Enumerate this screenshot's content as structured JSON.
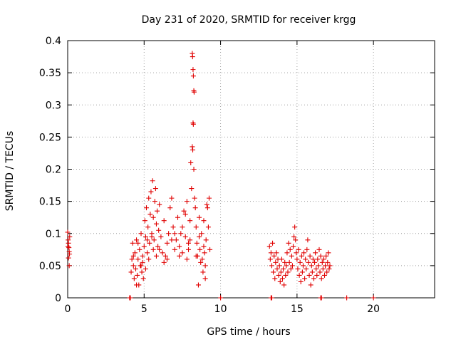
{
  "chart_data": {
    "type": "scatter",
    "title": "Day 231 of 2020, SRMTID for receiver krgg",
    "xlabel": "GPS time / hours",
    "ylabel": "SRMTID / TECUs",
    "xlim": [
      0,
      24
    ],
    "ylim": [
      0,
      0.4
    ],
    "x_ticks": [
      0,
      5,
      10,
      15,
      20
    ],
    "x_tick_labels": [
      "0",
      "5",
      "10",
      "15",
      "20"
    ],
    "y_ticks": [
      0,
      0.05,
      0.1,
      0.15,
      0.2,
      0.25,
      0.3,
      0.35,
      0.4
    ],
    "y_tick_labels": [
      "0",
      "0.05",
      "0.1",
      "0.15",
      "0.2",
      "0.25",
      "0.3",
      "0.35",
      "0.4"
    ],
    "grid": true,
    "marker": "+",
    "color": "#e00000",
    "series": [
      {
        "name": "SRMTID",
        "points": [
          [
            0.0,
            0.102
          ],
          [
            0.03,
            0.09
          ],
          [
            0.05,
            0.085
          ],
          [
            0.08,
            0.078
          ],
          [
            0.1,
            0.072
          ],
          [
            0.12,
            0.068
          ],
          [
            0.05,
            0.062
          ],
          [
            0.1,
            0.05
          ],
          [
            0.02,
            0.08
          ],
          [
            0.13,
            0.095
          ],
          [
            4.05,
            0.0
          ],
          [
            4.1,
            0.0
          ],
          [
            4.15,
            0.04
          ],
          [
            4.2,
            0.06
          ],
          [
            4.25,
            0.085
          ],
          [
            4.3,
            0.05
          ],
          [
            4.35,
            0.03
          ],
          [
            4.4,
            0.07
          ],
          [
            4.45,
            0.045
          ],
          [
            4.5,
            0.09
          ],
          [
            4.55,
            0.035
          ],
          [
            4.6,
            0.06
          ],
          [
            4.65,
            0.02
          ],
          [
            4.7,
            0.075
          ],
          [
            4.75,
            0.05
          ],
          [
            4.8,
            0.1
          ],
          [
            4.85,
            0.04
          ],
          [
            4.9,
            0.065
          ],
          [
            4.95,
            0.03
          ],
          [
            5.0,
            0.08
          ],
          [
            5.05,
            0.12
          ],
          [
            5.1,
            0.095
          ],
          [
            5.15,
            0.14
          ],
          [
            5.2,
            0.07
          ],
          [
            5.25,
            0.11
          ],
          [
            5.3,
            0.155
          ],
          [
            5.35,
            0.085
          ],
          [
            5.4,
            0.13
          ],
          [
            5.45,
            0.165
          ],
          [
            5.5,
            0.1
          ],
          [
            5.55,
            0.182
          ],
          [
            5.6,
            0.125
          ],
          [
            5.65,
            0.09
          ],
          [
            5.7,
            0.15
          ],
          [
            5.75,
            0.17
          ],
          [
            5.8,
            0.115
          ],
          [
            5.85,
            0.135
          ],
          [
            5.9,
            0.08
          ],
          [
            5.95,
            0.105
          ],
          [
            6.0,
            0.145
          ],
          [
            4.5,
            0.02
          ],
          [
            4.8,
            0.05
          ],
          [
            5.1,
            0.045
          ],
          [
            4.3,
            0.065
          ],
          [
            4.6,
            0.085
          ],
          [
            5.3,
            0.06
          ],
          [
            5.6,
            0.075
          ],
          [
            6.1,
            0.095
          ],
          [
            6.2,
            0.07
          ],
          [
            6.3,
            0.12
          ],
          [
            6.4,
            0.065
          ],
          [
            6.5,
            0.085
          ],
          [
            6.6,
            0.1
          ],
          [
            6.7,
            0.14
          ],
          [
            6.8,
            0.155
          ],
          [
            6.9,
            0.11
          ],
          [
            7.0,
            0.075
          ],
          [
            7.1,
            0.09
          ],
          [
            7.2,
            0.125
          ],
          [
            7.3,
            0.08
          ],
          [
            7.4,
            0.1
          ],
          [
            7.5,
            0.07
          ],
          [
            7.6,
            0.135
          ],
          [
            7.7,
            0.095
          ],
          [
            7.8,
            0.06
          ],
          [
            7.9,
            0.085
          ],
          [
            8.0,
            0.12
          ],
          [
            8.05,
            0.21
          ],
          [
            8.1,
            0.17
          ],
          [
            8.15,
            0.38
          ],
          [
            8.17,
            0.375
          ],
          [
            8.2,
            0.355
          ],
          [
            8.22,
            0.345
          ],
          [
            8.25,
            0.322
          ],
          [
            8.27,
            0.32
          ],
          [
            8.2,
            0.272
          ],
          [
            8.22,
            0.27
          ],
          [
            8.15,
            0.235
          ],
          [
            8.18,
            0.23
          ],
          [
            8.25,
            0.2
          ],
          [
            8.3,
            0.155
          ],
          [
            8.35,
            0.14
          ],
          [
            8.4,
            0.11
          ],
          [
            8.45,
            0.085
          ],
          [
            8.5,
            0.065
          ],
          [
            8.55,
            0.02
          ],
          [
            8.6,
            0.095
          ],
          [
            8.65,
            0.075
          ],
          [
            8.7,
            0.055
          ],
          [
            8.75,
            0.1
          ],
          [
            8.8,
            0.06
          ],
          [
            8.85,
            0.04
          ],
          [
            8.9,
            0.08
          ],
          [
            8.95,
            0.07
          ],
          [
            9.0,
            0.05
          ],
          [
            9.05,
            0.09
          ],
          [
            9.1,
            0.145
          ],
          [
            9.15,
            0.14
          ],
          [
            9.2,
            0.11
          ],
          [
            9.25,
            0.155
          ],
          [
            9.3,
            0.075
          ],
          [
            9.0,
            0.03
          ],
          [
            8.9,
            0.12
          ],
          [
            7.5,
            0.11
          ],
          [
            7.0,
            0.1
          ],
          [
            6.5,
            0.06
          ],
          [
            6.0,
            0.075
          ],
          [
            5.5,
            0.095
          ],
          [
            7.7,
            0.13
          ],
          [
            7.3,
            0.065
          ],
          [
            8.0,
            0.09
          ],
          [
            8.4,
            0.065
          ],
          [
            8.6,
            0.125
          ],
          [
            7.8,
            0.15
          ],
          [
            7.9,
            0.075
          ],
          [
            6.8,
            0.09
          ],
          [
            6.3,
            0.055
          ],
          [
            5.8,
            0.065
          ],
          [
            5.2,
            0.09
          ],
          [
            4.9,
            0.055
          ],
          [
            13.2,
            0.08
          ],
          [
            13.25,
            0.06
          ],
          [
            13.3,
            0.07
          ],
          [
            13.35,
            0.05
          ],
          [
            13.4,
            0.085
          ],
          [
            13.45,
            0.04
          ],
          [
            13.5,
            0.065
          ],
          [
            13.55,
            0.03
          ],
          [
            13.6,
            0.055
          ],
          [
            13.65,
            0.07
          ],
          [
            13.7,
            0.045
          ],
          [
            13.75,
            0.06
          ],
          [
            13.8,
            0.035
          ],
          [
            13.85,
            0.05
          ],
          [
            13.9,
            0.025
          ],
          [
            13.95,
            0.04
          ],
          [
            14.0,
            0.06
          ],
          [
            14.05,
            0.03
          ],
          [
            14.1,
            0.045
          ],
          [
            14.15,
            0.02
          ],
          [
            14.2,
            0.055
          ],
          [
            14.25,
            0.035
          ],
          [
            14.3,
            0.05
          ],
          [
            14.35,
            0.07
          ],
          [
            14.4,
            0.04
          ],
          [
            14.45,
            0.085
          ],
          [
            14.5,
            0.055
          ],
          [
            14.55,
            0.075
          ],
          [
            14.6,
            0.045
          ],
          [
            14.65,
            0.065
          ],
          [
            14.7,
            0.05
          ],
          [
            14.75,
            0.08
          ],
          [
            14.8,
            0.095
          ],
          [
            14.85,
            0.11
          ],
          [
            14.9,
            0.09
          ],
          [
            14.95,
            0.07
          ],
          [
            15.0,
            0.06
          ],
          [
            15.05,
            0.045
          ],
          [
            15.1,
            0.075
          ],
          [
            15.15,
            0.035
          ],
          [
            15.2,
            0.055
          ],
          [
            15.25,
            0.025
          ],
          [
            15.3,
            0.065
          ],
          [
            15.35,
            0.04
          ],
          [
            15.4,
            0.05
          ],
          [
            15.45,
            0.07
          ],
          [
            15.5,
            0.03
          ],
          [
            15.55,
            0.06
          ],
          [
            15.6,
            0.045
          ],
          [
            15.65,
            0.075
          ],
          [
            15.7,
            0.09
          ],
          [
            15.75,
            0.055
          ],
          [
            15.8,
            0.035
          ],
          [
            15.85,
            0.065
          ],
          [
            15.9,
            0.02
          ],
          [
            15.95,
            0.05
          ],
          [
            16.0,
            0.04
          ],
          [
            16.05,
            0.06
          ],
          [
            16.1,
            0.03
          ],
          [
            16.15,
            0.055
          ],
          [
            16.2,
            0.07
          ],
          [
            16.25,
            0.045
          ],
          [
            16.3,
            0.035
          ],
          [
            16.35,
            0.06
          ],
          [
            16.4,
            0.05
          ],
          [
            16.45,
            0.075
          ],
          [
            16.5,
            0.04
          ],
          [
            16.55,
            0.065
          ],
          [
            16.6,
            0.03
          ],
          [
            16.65,
            0.055
          ],
          [
            16.7,
            0.045
          ],
          [
            16.75,
            0.06
          ],
          [
            16.8,
            0.035
          ],
          [
            16.85,
            0.05
          ],
          [
            16.9,
            0.065
          ],
          [
            16.95,
            0.04
          ],
          [
            17.0,
            0.055
          ],
          [
            17.05,
            0.07
          ],
          [
            17.1,
            0.045
          ],
          [
            17.15,
            0.05
          ],
          [
            13.3,
            0.0
          ],
          [
            13.35,
            0.0
          ],
          [
            16.55,
            0.0
          ],
          [
            16.6,
            0.0
          ],
          [
            18.25,
            0.0
          ],
          [
            10.0,
            0.0
          ],
          [
            20.0,
            0.0
          ]
        ]
      }
    ]
  }
}
